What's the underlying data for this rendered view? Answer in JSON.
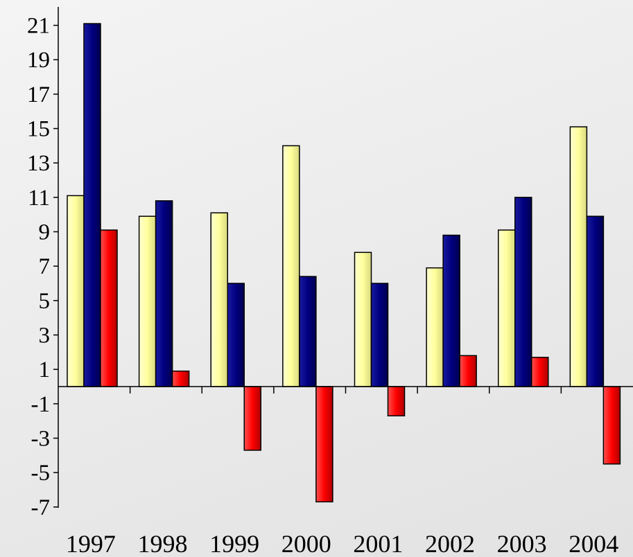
{
  "chart_data": {
    "type": "bar",
    "categories": [
      "1997",
      "1998",
      "1999",
      "2000",
      "2001",
      "2002",
      "2003",
      "2004"
    ],
    "series": [
      {
        "color": "#ffffa8",
        "values": [
          11.1,
          9.9,
          10.1,
          14.0,
          7.8,
          6.9,
          9.1,
          15.1
        ]
      },
      {
        "color": "#000080",
        "values": [
          21.1,
          10.8,
          6.0,
          6.4,
          6.0,
          8.8,
          11.0,
          9.9
        ]
      },
      {
        "color": "#ff0000",
        "values": [
          9.1,
          0.9,
          -3.7,
          -6.7,
          -1.7,
          1.8,
          1.7,
          -4.5
        ]
      }
    ],
    "yticks": [
      21,
      19,
      17,
      15,
      13,
      11,
      9,
      7,
      5,
      3,
      1,
      -1,
      -3,
      -5,
      -7
    ],
    "ylim": [
      -7,
      22
    ],
    "grid": false,
    "legend": false,
    "title": "",
    "xlabel": "",
    "ylabel": ""
  }
}
